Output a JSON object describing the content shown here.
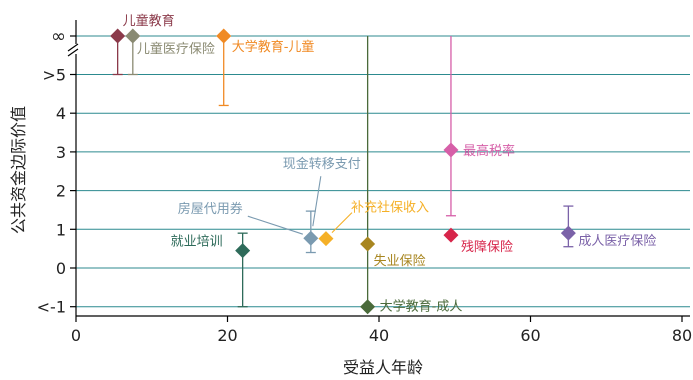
{
  "chart_data": {
    "type": "scatter",
    "title": "",
    "xlabel": "受益人年龄",
    "ylabel": "公共资金边际价值",
    "xlim": [
      0,
      80
    ],
    "xticks": [
      0,
      20,
      40,
      60,
      80
    ],
    "yticks": [
      {
        "label": "<-1",
        "value": -1
      },
      {
        "label": "0",
        "value": 0
      },
      {
        "label": "1",
        "value": 1
      },
      {
        "label": "2",
        "value": 2
      },
      {
        "label": "3",
        "value": 3
      },
      {
        "label": "4",
        "value": 4
      },
      {
        "label": ">5",
        "value": 5
      },
      {
        "label": "∞",
        "value": "inf"
      }
    ],
    "grid": "horizontal",
    "points": [
      {
        "label": "儿童教育",
        "x": 5.5,
        "y": "inf",
        "ci_low": 5,
        "ci_high": "inf",
        "color": "#8b3a4a"
      },
      {
        "label": "儿童医疗保险",
        "x": 7.5,
        "y": "inf",
        "ci_low": 5,
        "ci_high": "inf",
        "color": "#8a8a72"
      },
      {
        "label": "大学教育-儿童",
        "x": 19.5,
        "y": "inf",
        "ci_low": 4.2,
        "ci_high": "inf",
        "color": "#f08a24"
      },
      {
        "label": "就业培训",
        "x": 22,
        "y": 0.45,
        "ci_low": -1,
        "ci_high": 0.9,
        "color": "#2e6b5a"
      },
      {
        "label": "房屋代用券",
        "x": 31,
        "y": 0.77,
        "ci_low": 0.4,
        "ci_high": 1.47,
        "color": "#7a9ab0"
      },
      {
        "label": "现金转移支付",
        "x": 31,
        "y": 0.77,
        "ci_low": 0.4,
        "ci_high": 1.47,
        "color": "#7a9ab0"
      },
      {
        "label": "补充社保收入",
        "x": 33,
        "y": 0.76,
        "ci_low": 0.76,
        "ci_high": 0.76,
        "color": "#f5b027"
      },
      {
        "label": "失业保险",
        "x": 38.5,
        "y": 0.62,
        "ci_low": 0.62,
        "ci_high": 0.62,
        "color": "#a88620"
      },
      {
        "label": "大学教育-成人",
        "x": 38.5,
        "y": -1,
        "ci_low": -1,
        "ci_high": "inf",
        "color": "#4a6a3a"
      },
      {
        "label": "最高税率",
        "x": 49.5,
        "y": 3.05,
        "ci_low": 1.35,
        "ci_high": "inf",
        "color": "#d65fa8"
      },
      {
        "label": "残障保险",
        "x": 49.5,
        "y": 0.85,
        "ci_low": 0.85,
        "ci_high": 0.85,
        "color": "#d7254a"
      },
      {
        "label": "成人医疗保险",
        "x": 65,
        "y": 0.9,
        "ci_low": 0.55,
        "ci_high": 1.6,
        "color": "#7b62a8"
      }
    ]
  }
}
